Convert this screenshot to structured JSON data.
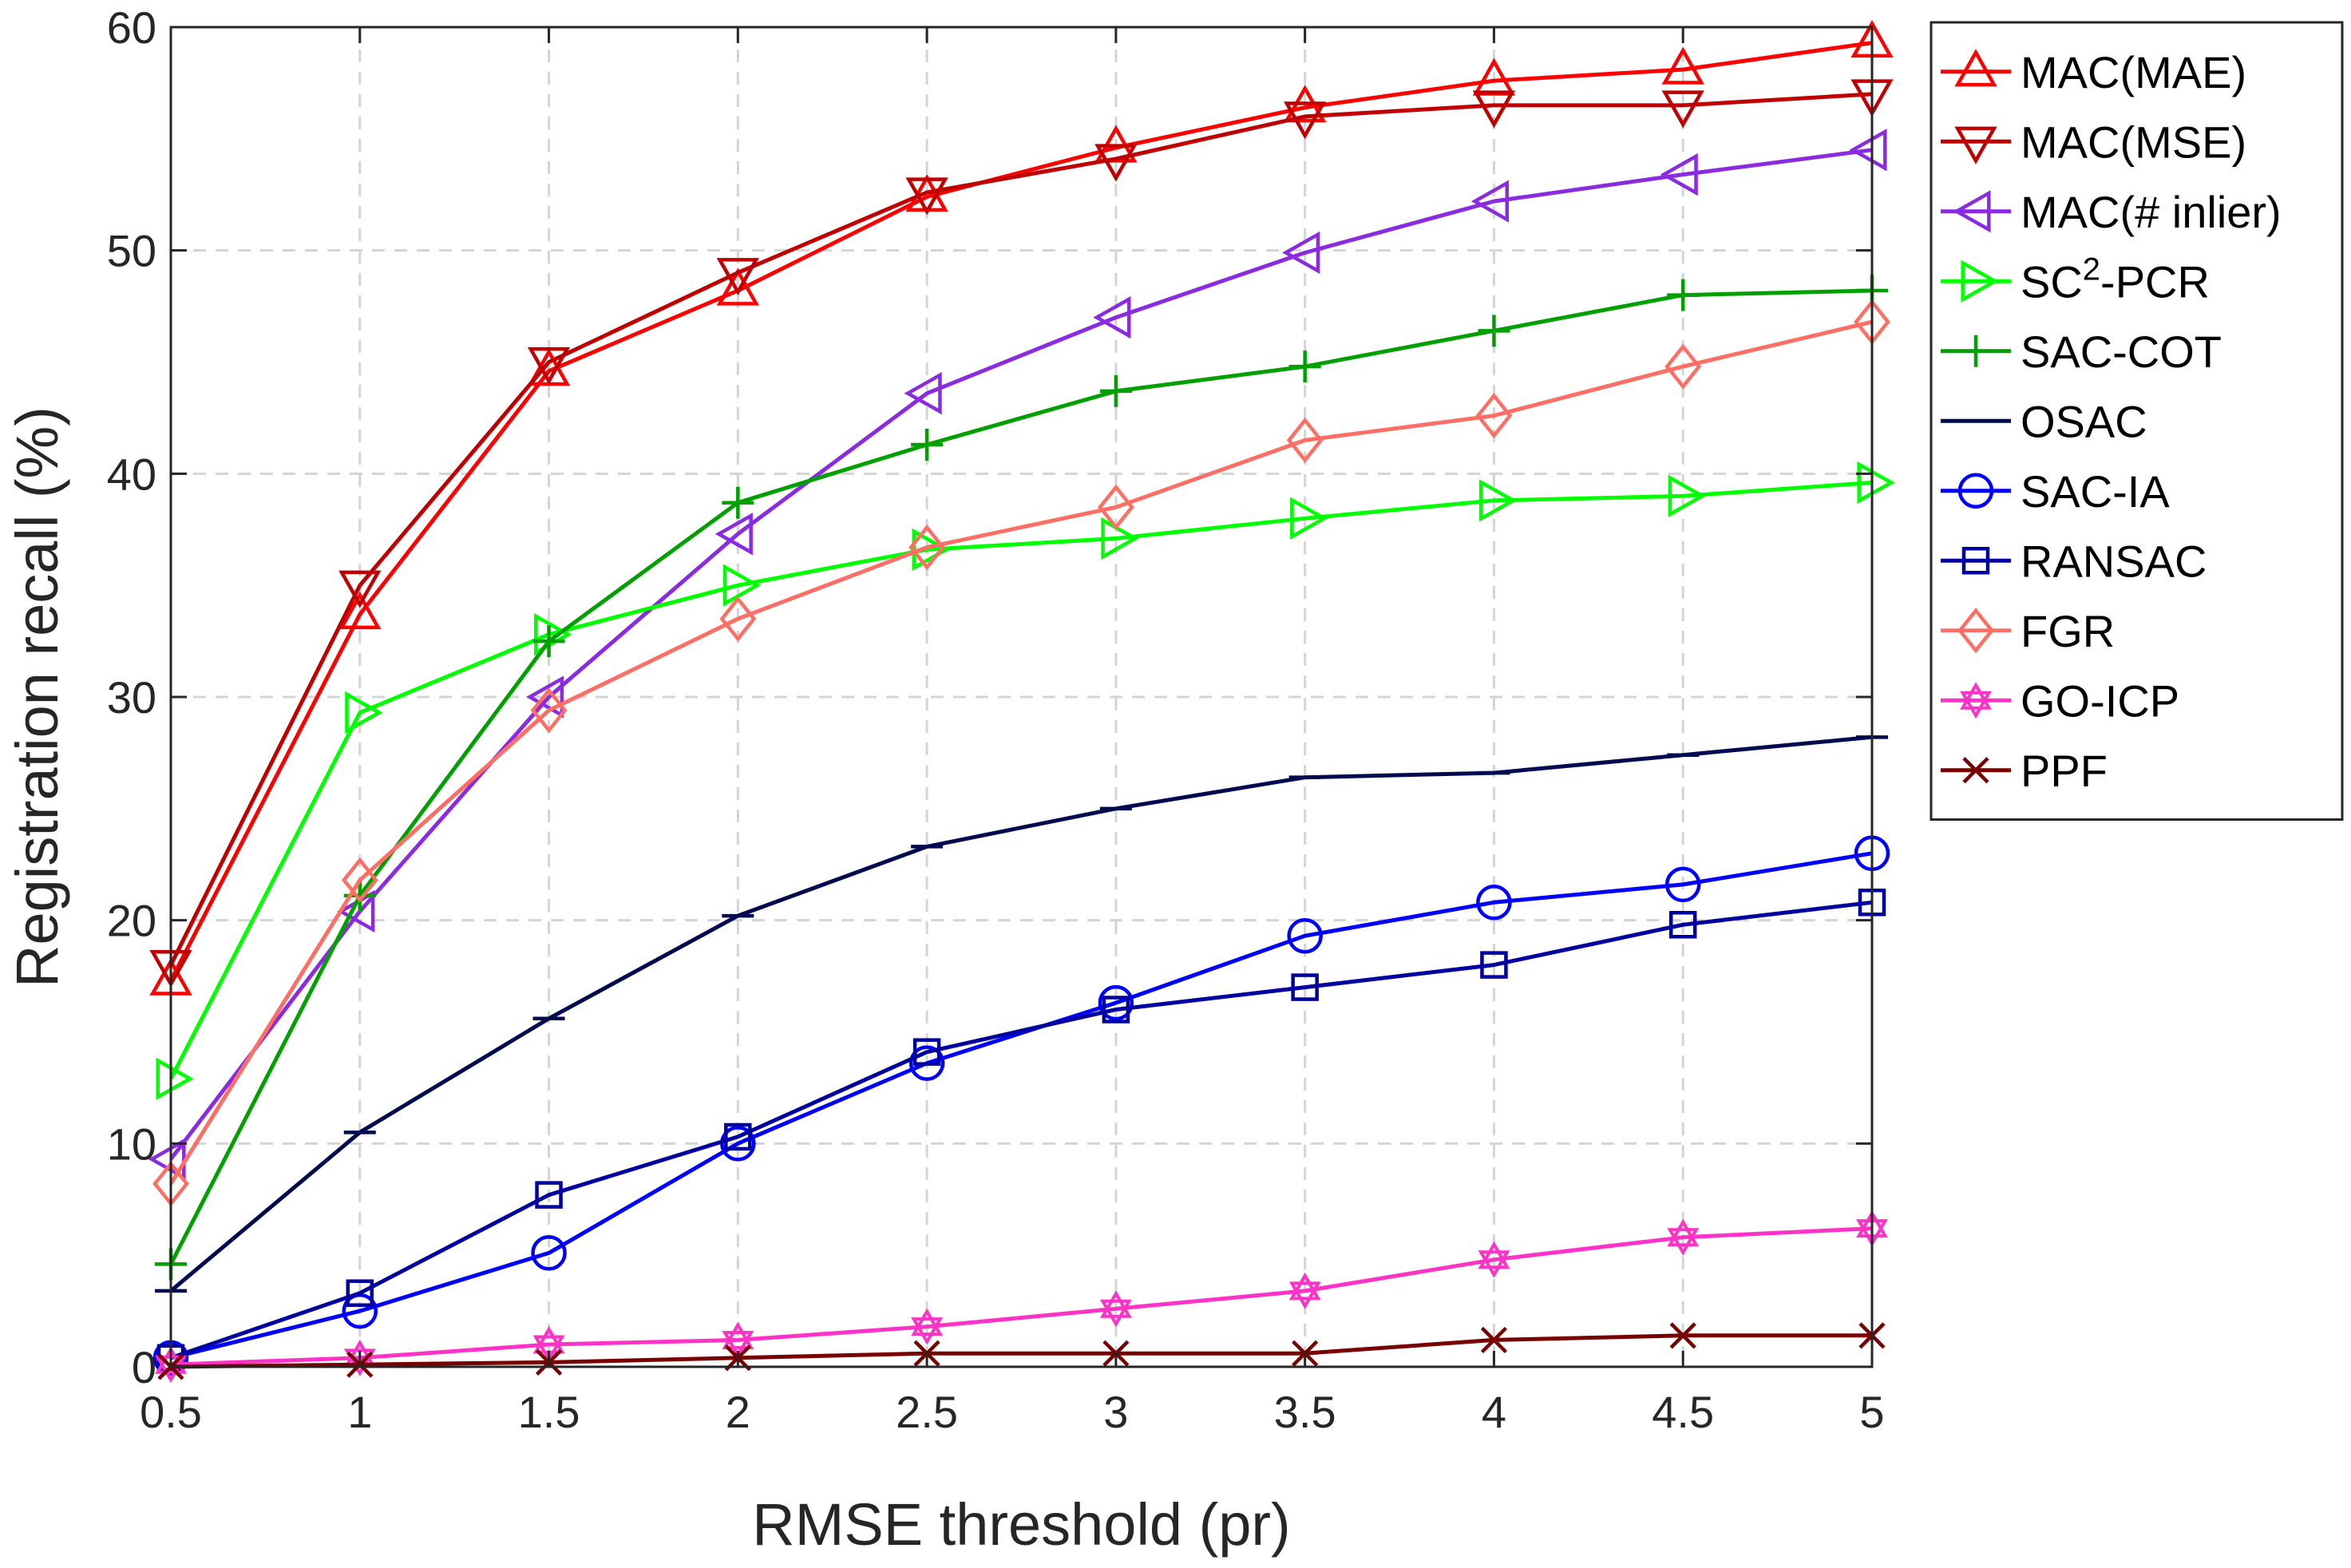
{
  "chart_data": {
    "type": "line",
    "title": "",
    "xlabel": "RMSE threshold (pr)",
    "ylabel": "Registration recall (%)",
    "xlim": [
      0.5,
      5
    ],
    "ylim": [
      0,
      60
    ],
    "x": [
      0.5,
      1,
      1.5,
      2,
      2.5,
      3,
      3.5,
      4,
      4.5,
      5
    ],
    "x_tick_labels": [
      "0.5",
      "1",
      "1.5",
      "2",
      "2.5",
      "3",
      "3.5",
      "4",
      "4.5",
      "5"
    ],
    "y_ticks": [
      0,
      10,
      20,
      30,
      40,
      50,
      60
    ],
    "y_tick_labels": [
      "0",
      "10",
      "20",
      "30",
      "40",
      "50",
      "60"
    ],
    "grid": true,
    "legend_position": "outside-top-right",
    "series": [
      {
        "name": "MAC(MAE)",
        "label_main": "MAC(MAE)",
        "label_sup": "",
        "label_tail": "",
        "color": "#ff0000",
        "marker": "triangle-up",
        "values": [
          17.3,
          33.7,
          44.6,
          48.2,
          52.4,
          54.6,
          56.4,
          57.6,
          58.1,
          59.3
        ]
      },
      {
        "name": "MAC(MSE)",
        "label_main": "MAC(MSE)",
        "label_sup": "",
        "label_tail": "",
        "color": "#c00000",
        "marker": "triangle-down",
        "values": [
          18.0,
          35.0,
          45.0,
          49.0,
          52.6,
          54.1,
          56.0,
          56.5,
          56.5,
          57.0
        ]
      },
      {
        "name": "MAC(# inlier)",
        "label_main": "MAC(# inlier)",
        "label_sup": "",
        "label_tail": "",
        "color": "#8a2be2",
        "marker": "triangle-left",
        "values": [
          9.3,
          20.4,
          30.0,
          37.3,
          43.6,
          47.0,
          49.9,
          52.2,
          53.4,
          54.5
        ]
      },
      {
        "name": "SC2-PCR",
        "label_main": "SC",
        "label_sup": "2",
        "label_tail": "-PCR",
        "color": "#00ff00",
        "marker": "triangle-right",
        "values": [
          12.9,
          29.3,
          32.8,
          35.0,
          36.6,
          37.1,
          38.0,
          38.8,
          39.0,
          39.6
        ]
      },
      {
        "name": "SAC-COT",
        "label_main": "SAC-COT",
        "label_sup": "",
        "label_tail": "",
        "color": "#00a000",
        "marker": "plus",
        "values": [
          4.6,
          21.1,
          32.5,
          38.7,
          41.3,
          43.7,
          44.8,
          46.4,
          48.0,
          48.2
        ]
      },
      {
        "name": "OSAC",
        "label_main": "OSAC",
        "label_sup": "",
        "label_tail": "",
        "color": "#000a50",
        "marker": "hline",
        "values": [
          3.4,
          10.5,
          15.6,
          20.2,
          23.3,
          25.0,
          26.4,
          26.6,
          27.4,
          28.2
        ]
      },
      {
        "name": "SAC-IA",
        "label_main": "SAC-IA",
        "label_sup": "",
        "label_tail": "",
        "color": "#0000ff",
        "marker": "circle",
        "values": [
          0.4,
          2.5,
          5.1,
          10.0,
          13.6,
          16.3,
          19.3,
          20.8,
          21.6,
          23.0
        ]
      },
      {
        "name": "RANSAC",
        "label_main": "RANSAC",
        "label_sup": "",
        "label_tail": "",
        "color": "#0000a0",
        "marker": "square",
        "values": [
          0.4,
          3.3,
          7.7,
          10.3,
          14.1,
          16.0,
          17.0,
          18.0,
          19.8,
          20.8
        ]
      },
      {
        "name": "FGR",
        "label_main": "FGR",
        "label_sup": "",
        "label_tail": "",
        "color": "#ff6e64",
        "marker": "diamond",
        "values": [
          8.2,
          21.8,
          29.4,
          33.5,
          36.7,
          38.5,
          41.5,
          42.6,
          44.8,
          46.8
        ]
      },
      {
        "name": "GO-ICP",
        "label_main": "GO-ICP",
        "label_sup": "",
        "label_tail": "",
        "color": "#ff32c8",
        "marker": "hexagram",
        "values": [
          0.1,
          0.4,
          1.0,
          1.2,
          1.8,
          2.6,
          3.4,
          4.8,
          5.8,
          6.2
        ]
      },
      {
        "name": "PPF",
        "label_main": "PPF",
        "label_sup": "",
        "label_tail": "",
        "color": "#780000",
        "marker": "x",
        "values": [
          0.0,
          0.1,
          0.2,
          0.4,
          0.6,
          0.6,
          0.6,
          1.2,
          1.4,
          1.4
        ]
      }
    ]
  }
}
